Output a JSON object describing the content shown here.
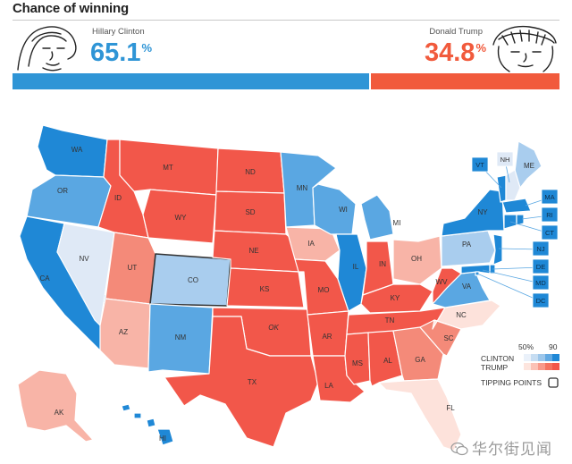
{
  "header": {
    "title": "Chance of winning"
  },
  "candidates": {
    "clinton": {
      "name": "Hillary Clinton",
      "pct": "65.1",
      "pct_symbol": "%",
      "share": 0.651,
      "color": "#2f95d6"
    },
    "trump": {
      "name": "Donald Trump",
      "pct": "34.8",
      "pct_symbol": "%",
      "share": 0.348,
      "color": "#f15a3c"
    }
  },
  "colors": {
    "clinton_strong": "#1f88d6",
    "clinton_likely": "#5aa7e2",
    "clinton_lean": "#a9cdee",
    "clinton_tilt": "#dfe9f6",
    "trump_strong": "#f2574a",
    "trump_likely": "#f48a79",
    "trump_lean": "#f8b4a7",
    "trump_tilt": "#fde2db",
    "state_border": "#ffffff",
    "tipping_border": "#333333"
  },
  "states": [
    {
      "abbr": "WA",
      "lean": "clinton_strong"
    },
    {
      "abbr": "OR",
      "lean": "clinton_likely"
    },
    {
      "abbr": "CA",
      "lean": "clinton_strong"
    },
    {
      "abbr": "NV",
      "lean": "clinton_tilt"
    },
    {
      "abbr": "ID",
      "lean": "trump_strong"
    },
    {
      "abbr": "MT",
      "lean": "trump_strong"
    },
    {
      "abbr": "WY",
      "lean": "trump_strong"
    },
    {
      "abbr": "UT",
      "lean": "trump_likely"
    },
    {
      "abbr": "AZ",
      "lean": "trump_lean"
    },
    {
      "abbr": "CO",
      "lean": "clinton_lean",
      "tipping": true
    },
    {
      "abbr": "NM",
      "lean": "clinton_likely"
    },
    {
      "abbr": "ND",
      "lean": "trump_strong"
    },
    {
      "abbr": "SD",
      "lean": "trump_strong"
    },
    {
      "abbr": "NE",
      "lean": "trump_strong"
    },
    {
      "abbr": "KS",
      "lean": "trump_strong"
    },
    {
      "abbr": "OK",
      "lean": "trump_strong"
    },
    {
      "abbr": "TX",
      "lean": "trump_strong"
    },
    {
      "abbr": "MN",
      "lean": "clinton_likely"
    },
    {
      "abbr": "IA",
      "lean": "trump_lean"
    },
    {
      "abbr": "MO",
      "lean": "trump_strong"
    },
    {
      "abbr": "AR",
      "lean": "trump_strong"
    },
    {
      "abbr": "LA",
      "lean": "trump_strong"
    },
    {
      "abbr": "WI",
      "lean": "clinton_likely"
    },
    {
      "abbr": "IL",
      "lean": "clinton_strong"
    },
    {
      "abbr": "MI",
      "lean": "clinton_likely"
    },
    {
      "abbr": "IN",
      "lean": "trump_strong"
    },
    {
      "abbr": "OH",
      "lean": "trump_lean"
    },
    {
      "abbr": "KY",
      "lean": "trump_strong"
    },
    {
      "abbr": "TN",
      "lean": "trump_strong"
    },
    {
      "abbr": "MS",
      "lean": "trump_strong"
    },
    {
      "abbr": "AL",
      "lean": "trump_strong"
    },
    {
      "abbr": "GA",
      "lean": "trump_likely"
    },
    {
      "abbr": "FL",
      "lean": "trump_tilt"
    },
    {
      "abbr": "SC",
      "lean": "trump_likely"
    },
    {
      "abbr": "NC",
      "lean": "trump_tilt"
    },
    {
      "abbr": "VA",
      "lean": "clinton_likely"
    },
    {
      "abbr": "WV",
      "lean": "trump_strong"
    },
    {
      "abbr": "PA",
      "lean": "clinton_lean"
    },
    {
      "abbr": "NY",
      "lean": "clinton_strong"
    },
    {
      "abbr": "ME",
      "lean": "clinton_lean"
    },
    {
      "abbr": "AK",
      "lean": "trump_lean"
    },
    {
      "abbr": "HI",
      "lean": "clinton_strong"
    },
    {
      "abbr": "VT",
      "lean": "clinton_strong"
    },
    {
      "abbr": "NH",
      "lean": "clinton_tilt"
    },
    {
      "abbr": "MA",
      "lean": "clinton_strong"
    },
    {
      "abbr": "RI",
      "lean": "clinton_strong"
    },
    {
      "abbr": "CT",
      "lean": "clinton_strong"
    },
    {
      "abbr": "NJ",
      "lean": "clinton_strong"
    },
    {
      "abbr": "DE",
      "lean": "clinton_strong"
    },
    {
      "abbr": "MD",
      "lean": "clinton_strong"
    },
    {
      "abbr": "DC",
      "lean": "clinton_strong"
    }
  ],
  "legend": {
    "clinton_label": "CLINTON",
    "trump_label": "TRUMP",
    "scale_low": "50%",
    "scale_high": "90",
    "tipping_label": "TIPPING POINTS",
    "clinton_scale": [
      "#eaf1fa",
      "#c6ddf2",
      "#9cc6ea",
      "#62a9e2",
      "#1f88d6"
    ],
    "trump_scale": [
      "#fde5de",
      "#fbc2b6",
      "#f8998a",
      "#f47360",
      "#f2574a"
    ]
  },
  "watermark": {
    "text": "华尔街见闻",
    "icon": "wechat-logo-icon"
  }
}
